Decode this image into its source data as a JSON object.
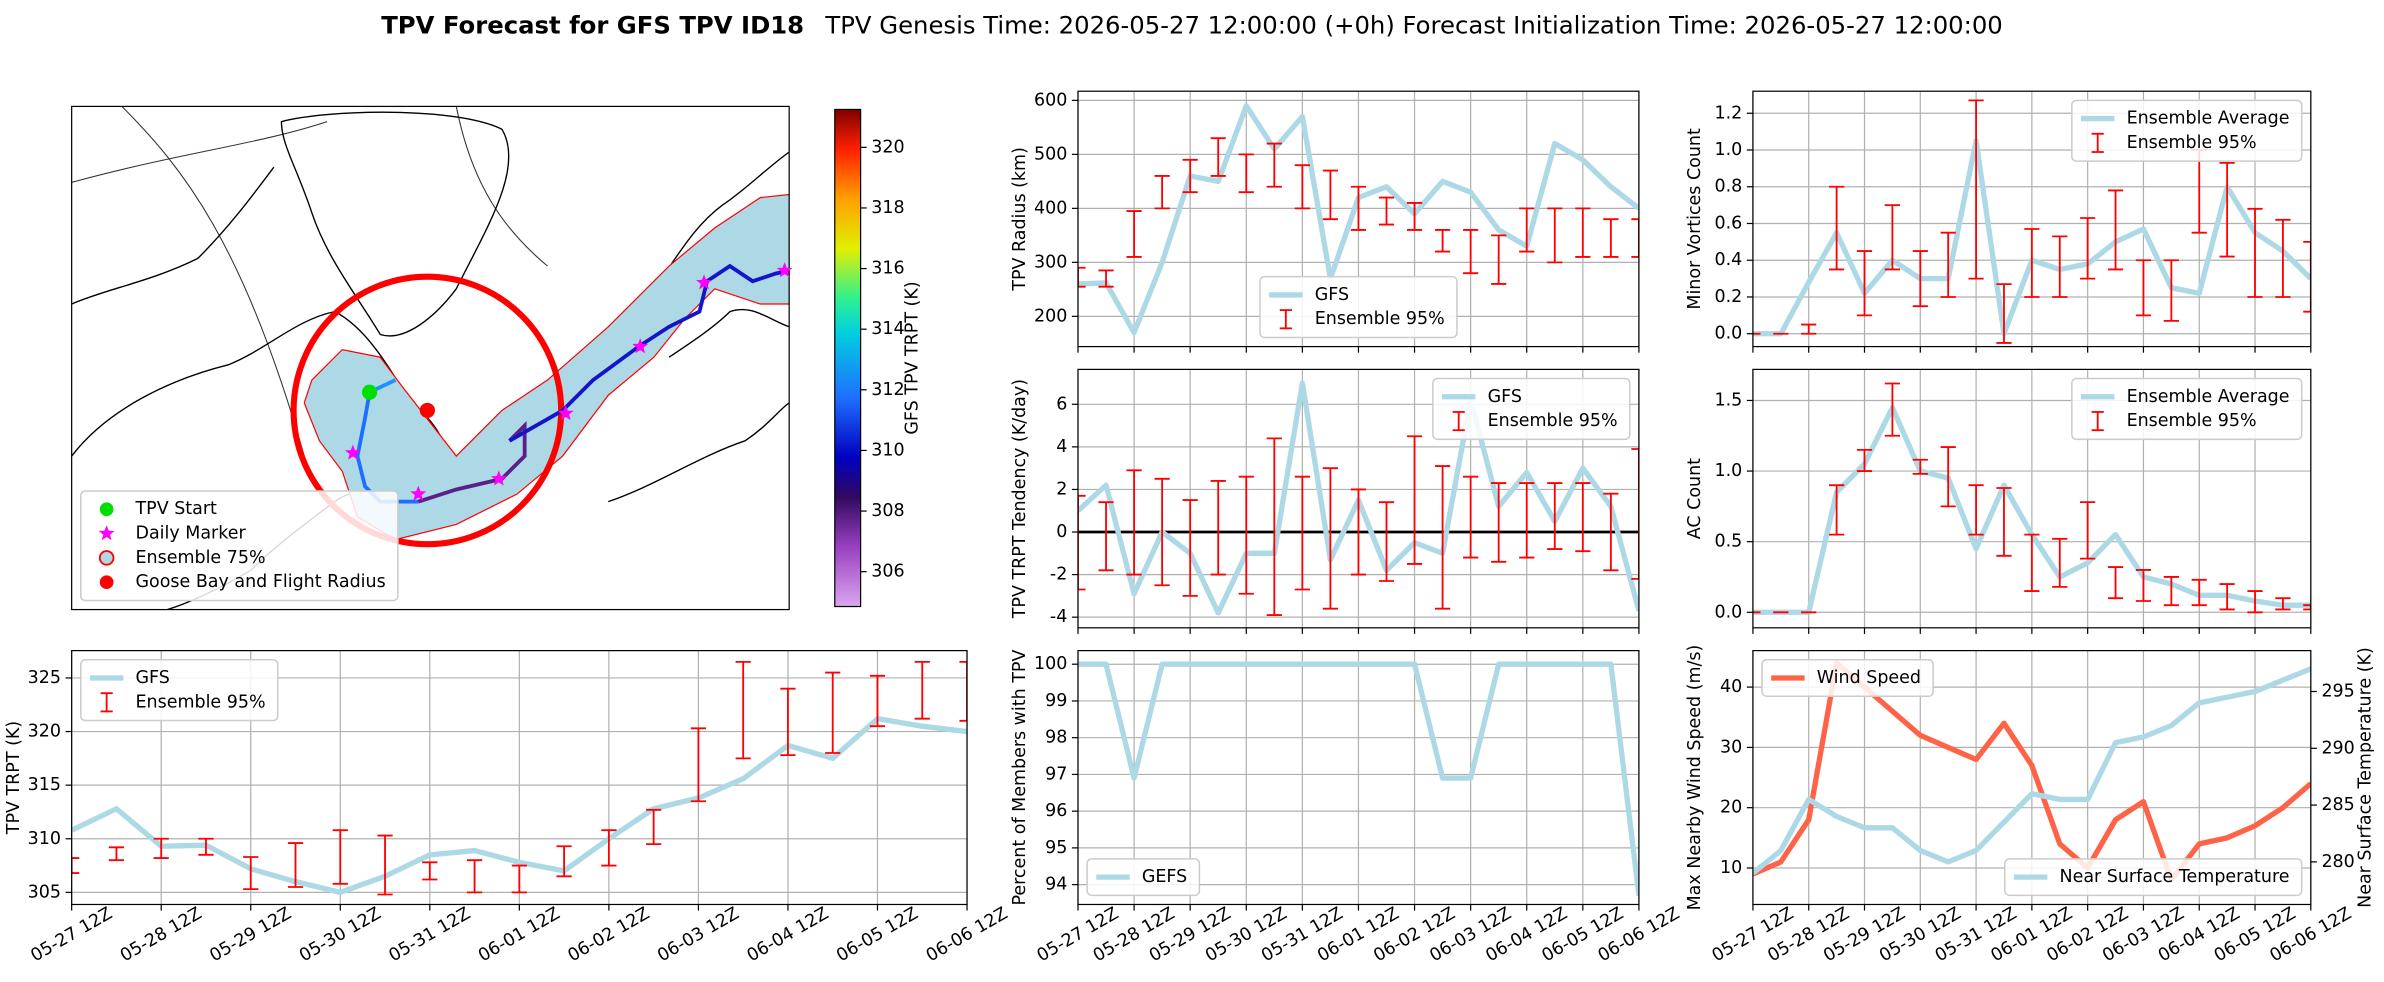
{
  "title": "TPV Forecast for GFS TPV ID18",
  "subtitle": "TPV Genesis Time: 2026-05-27 12:00:00 (+0h)   Forecast Initialization Time: 2026-05-27 12:00:00",
  "chart_data": [
    {
      "type": "map",
      "legend": "lower left",
      "legend_items": [
        {
          "name": "TPV Start",
          "color": "#00e000",
          "marker": "circle"
        },
        {
          "name": "Daily Marker",
          "color": "#ff00ff",
          "marker": "star"
        },
        {
          "name": "Ensemble 75%",
          "color": "#add8e6",
          "edge": "#ff0000",
          "marker": "circle"
        },
        {
          "name": "Goose Bay and Flight Radius",
          "color": "#ff0000",
          "marker": "circle"
        }
      ],
      "colorbar": {
        "label": "GFS TPV TRPT (K)",
        "lim": [
          304.85,
          321.25
        ],
        "ticks": [
          306,
          308,
          310,
          312,
          314,
          316,
          318,
          320
        ]
      }
    },
    {
      "type": "line",
      "ylabel": "TPV Radius (km)",
      "grid": true,
      "legend": "lower center",
      "xlim": [
        0,
        240
      ],
      "xticks": [
        0,
        24,
        48,
        72,
        96,
        120,
        144,
        168,
        192,
        216,
        240
      ],
      "ylim": [
        144,
        617
      ],
      "yticks": [
        200,
        300,
        400,
        500,
        600
      ],
      "x": [
        0,
        12,
        24,
        36,
        48,
        60,
        72,
        84,
        96,
        108,
        120,
        132,
        144,
        156,
        168,
        180,
        192,
        204,
        216,
        228,
        240
      ],
      "series": [
        {
          "name": "GFS",
          "color": "#add8e6",
          "values": [
            260,
            262,
            170,
            300,
            460,
            450,
            590,
            510,
            570,
            270,
            420,
            440,
            390,
            450,
            430,
            360,
            330,
            520,
            490,
            440,
            400
          ]
        },
        {
          "name": "Ensemble 95%",
          "color": "#ff0000",
          "style": "errorbar",
          "lower": [
            255,
            255,
            310,
            400,
            430,
            460,
            430,
            440,
            400,
            380,
            360,
            370,
            360,
            320,
            280,
            260,
            320,
            300,
            310,
            310,
            310
          ],
          "upper": [
            290,
            285,
            395,
            460,
            490,
            530,
            500,
            520,
            480,
            470,
            440,
            420,
            410,
            360,
            360,
            350,
            400,
            400,
            400,
            380,
            380
          ]
        }
      ]
    },
    {
      "type": "line",
      "ylabel": "Minor Vortices Count",
      "grid": true,
      "legend": "upper right",
      "xlim": [
        0,
        240
      ],
      "xticks": [
        0,
        24,
        48,
        72,
        96,
        120,
        144,
        168,
        192,
        216,
        240
      ],
      "ylim": [
        -0.07,
        1.32
      ],
      "yticks": [
        {
          "value": 0,
          "label": "0.0"
        },
        0.2,
        0.4,
        0.6,
        0.8,
        {
          "value": 1,
          "label": "1.0"
        },
        1.2
      ],
      "x": [
        0,
        12,
        24,
        36,
        48,
        60,
        72,
        84,
        96,
        108,
        120,
        132,
        144,
        156,
        168,
        180,
        192,
        204,
        216,
        228,
        240
      ],
      "series": [
        {
          "name": "Ensemble Average",
          "color": "#add8e6",
          "values": [
            0,
            0,
            0.28,
            0.55,
            0.22,
            0.4,
            0.3,
            0.3,
            1.05,
            0,
            0.4,
            0.35,
            0.38,
            0.5,
            0.57,
            0.25,
            0.22,
            0.8,
            0.55,
            0.45,
            0.3
          ]
        },
        {
          "name": "Ensemble 95%",
          "color": "#ff0000",
          "style": "errorbar",
          "lower": [
            0,
            0,
            0,
            0.35,
            0.1,
            0.35,
            0.15,
            0.2,
            0.3,
            -0.05,
            0.2,
            0.2,
            0.3,
            0.35,
            0.1,
            0.07,
            0.55,
            0.42,
            0.2,
            0.2,
            0.12
          ],
          "upper": [
            0,
            0,
            0.05,
            0.8,
            0.45,
            0.7,
            0.45,
            0.55,
            1.27,
            0.27,
            0.57,
            0.53,
            0.63,
            0.78,
            0.4,
            0.4,
            1.0,
            0.93,
            0.68,
            0.62,
            0.5
          ]
        }
      ]
    },
    {
      "type": "line",
      "ylabel": "TPV TRPT Tendency (K/day)",
      "grid": true,
      "legend": "upper right",
      "hline": 0,
      "xlim": [
        0,
        240
      ],
      "xticks": [
        0,
        24,
        48,
        72,
        96,
        120,
        144,
        168,
        192,
        216,
        240
      ],
      "ylim": [
        -4.5,
        7.64
      ],
      "yticks": [
        -4,
        -2,
        0,
        2,
        4,
        6
      ],
      "x": [
        0,
        12,
        24,
        36,
        48,
        60,
        72,
        84,
        96,
        108,
        120,
        132,
        144,
        156,
        168,
        180,
        192,
        204,
        216,
        228,
        240
      ],
      "series": [
        {
          "name": "GFS",
          "color": "#add8e6",
          "values": [
            1,
            2.2,
            -2.9,
            0,
            -1,
            -3.8,
            -1,
            -1,
            7,
            -1.3,
            1.5,
            -1.8,
            -0.5,
            -1,
            6.2,
            1.2,
            2.8,
            0.5,
            3,
            1.2,
            -3.7
          ]
        },
        {
          "name": "Ensemble 95%",
          "color": "#ff0000",
          "style": "errorbar",
          "lower": [
            -2.7,
            -1.8,
            -2,
            -2.5,
            -3,
            -2,
            -2.9,
            -3.9,
            -2.7,
            -3.6,
            -2,
            -2.3,
            -1.5,
            -3.6,
            -1.2,
            -1.4,
            -1.2,
            -0.8,
            -0.9,
            -1.8,
            -2.2
          ],
          "upper": [
            1.7,
            1.4,
            2.9,
            2.5,
            1.5,
            2.4,
            2.6,
            4.4,
            2.6,
            3,
            2,
            1.4,
            4.5,
            3.1,
            2.6,
            2.3,
            2.3,
            2.3,
            2.3,
            1.8,
            3.9
          ]
        }
      ]
    },
    {
      "type": "line",
      "ylabel": "AC Count",
      "grid": true,
      "legend": "upper right",
      "xlim": [
        0,
        240
      ],
      "xticks": [
        0,
        24,
        48,
        72,
        96,
        120,
        144,
        168,
        192,
        216,
        240
      ],
      "ylim": [
        -0.11,
        1.72
      ],
      "yticks": [
        {
          "value": 0,
          "label": "0.0"
        },
        0.5,
        {
          "value": 1,
          "label": "1.0"
        },
        1.5
      ],
      "x": [
        0,
        12,
        24,
        36,
        48,
        60,
        72,
        84,
        96,
        108,
        120,
        132,
        144,
        156,
        168,
        180,
        192,
        204,
        216,
        228,
        240
      ],
      "series": [
        {
          "name": "Ensemble Average",
          "color": "#add8e6",
          "values": [
            0,
            0,
            0,
            0.85,
            1.05,
            1.45,
            1,
            0.95,
            0.45,
            0.9,
            0.55,
            0.25,
            0.35,
            0.55,
            0.25,
            0.2,
            0.12,
            0.12,
            0.08,
            0.05,
            0.05
          ]
        },
        {
          "name": "Ensemble 95%",
          "color": "#ff0000",
          "style": "errorbar",
          "lower": [
            0,
            0,
            0,
            0.55,
            1,
            1.25,
            0.98,
            0.75,
            0.55,
            0.4,
            0.15,
            0.18,
            0.38,
            0.1,
            0.08,
            0.05,
            0.05,
            0.02,
            0,
            0.02,
            0.02
          ],
          "upper": [
            0,
            0,
            0,
            0.9,
            1.15,
            1.62,
            1.08,
            1.17,
            0.9,
            0.88,
            0.55,
            0.52,
            0.78,
            0.32,
            0.3,
            0.25,
            0.23,
            0.2,
            0.15,
            0.1,
            0.05
          ]
        }
      ]
    },
    {
      "type": "line",
      "ylabel": "TPV TRPT (K)",
      "grid": true,
      "legend": "upper left",
      "xlim": [
        0,
        240
      ],
      "xticks": [
        {
          "value": 0,
          "label": "05-27 12Z"
        },
        {
          "value": 24,
          "label": "05-28 12Z"
        },
        {
          "value": 48,
          "label": "05-29 12Z"
        },
        {
          "value": 72,
          "label": "05-30 12Z"
        },
        {
          "value": 96,
          "label": "05-31 12Z"
        },
        {
          "value": 120,
          "label": "06-01 12Z"
        },
        {
          "value": 144,
          "label": "06-02 12Z"
        },
        {
          "value": 168,
          "label": "06-03 12Z"
        },
        {
          "value": 192,
          "label": "06-04 12Z"
        },
        {
          "value": 216,
          "label": "06-05 12Z"
        },
        {
          "value": 240,
          "label": "06-06 12Z"
        }
      ],
      "ylim": [
        303.87,
        327.55
      ],
      "yticks": [
        305,
        310,
        315,
        320,
        325
      ],
      "x": [
        0,
        12,
        24,
        36,
        48,
        60,
        72,
        84,
        96,
        108,
        120,
        132,
        144,
        156,
        168,
        180,
        192,
        204,
        216,
        228,
        240
      ],
      "series": [
        {
          "name": "GFS",
          "color": "#add8e6",
          "values": [
            310.8,
            312.8,
            309.3,
            309.4,
            307.2,
            306,
            305,
            306.5,
            308.5,
            308.9,
            307.8,
            307,
            310,
            312.8,
            313.8,
            315.6,
            318.7,
            317.5,
            321.2,
            320.5,
            320
          ]
        },
        {
          "name": "Ensemble 95%",
          "color": "#ff0000",
          "style": "errorbar",
          "lower": [
            306.8,
            308,
            308.2,
            308.5,
            305.3,
            305.5,
            305.8,
            304.8,
            306.2,
            305,
            305,
            306.5,
            307.5,
            309.5,
            313.5,
            317.5,
            317.8,
            318,
            320.5,
            321.2,
            321
          ],
          "upper": [
            308.2,
            309.2,
            310,
            310,
            308.3,
            309.6,
            310.8,
            310.3,
            307.8,
            308,
            307.5,
            309.3,
            310.8,
            312.7,
            320.3,
            326.5,
            324,
            325.5,
            325.2,
            326.5,
            326.5
          ]
        }
      ]
    },
    {
      "type": "line",
      "ylabel": "Percent of Members with TPV",
      "grid": true,
      "legend": "lower left",
      "xlim": [
        0,
        240
      ],
      "xticks": [
        {
          "value": 0,
          "label": "05-27 12Z"
        },
        {
          "value": 24,
          "label": "05-28 12Z"
        },
        {
          "value": 48,
          "label": "05-29 12Z"
        },
        {
          "value": 72,
          "label": "05-30 12Z"
        },
        {
          "value": 96,
          "label": "05-31 12Z"
        },
        {
          "value": 120,
          "label": "06-01 12Z"
        },
        {
          "value": 144,
          "label": "06-02 12Z"
        },
        {
          "value": 168,
          "label": "06-03 12Z"
        },
        {
          "value": 192,
          "label": "06-04 12Z"
        },
        {
          "value": 216,
          "label": "06-05 12Z"
        },
        {
          "value": 240,
          "label": "06-06 12Z"
        }
      ],
      "ylim": [
        93.46,
        100.37
      ],
      "yticks": [
        94,
        95,
        96,
        97,
        98,
        99,
        100
      ],
      "x": [
        0,
        12,
        24,
        36,
        48,
        60,
        72,
        84,
        96,
        108,
        120,
        132,
        144,
        156,
        168,
        180,
        192,
        204,
        216,
        228,
        240
      ],
      "series": [
        {
          "name": "GEFS",
          "color": "#add8e6",
          "values": [
            100,
            100,
            96.9,
            100,
            100,
            100,
            100,
            100,
            100,
            100,
            100,
            100,
            100,
            96.9,
            96.9,
            100,
            100,
            100,
            100,
            100,
            93.7
          ]
        }
      ]
    },
    {
      "type": "line",
      "ylabel": "Max Nearby Wind Speed (m/s)",
      "ylabel_color": "#ff6347",
      "y2label": "Near Surface Temperature (K)",
      "y2label_color": "#4169e1",
      "grid": true,
      "legend": "upper left",
      "legend2": "lower right",
      "xlim": [
        0,
        240
      ],
      "xticks": [
        {
          "value": 0,
          "label": "05-27 12Z"
        },
        {
          "value": 24,
          "label": "05-28 12Z"
        },
        {
          "value": 48,
          "label": "05-29 12Z"
        },
        {
          "value": 72,
          "label": "05-30 12Z"
        },
        {
          "value": 96,
          "label": "05-31 12Z"
        },
        {
          "value": 120,
          "label": "06-01 12Z"
        },
        {
          "value": 144,
          "label": "06-02 12Z"
        },
        {
          "value": 168,
          "label": "06-03 12Z"
        },
        {
          "value": 192,
          "label": "06-04 12Z"
        },
        {
          "value": 216,
          "label": "06-05 12Z"
        },
        {
          "value": 240,
          "label": "06-06 12Z"
        }
      ],
      "ylim": [
        3.95,
        46.05
      ],
      "yticks": [
        10,
        20,
        30,
        40
      ],
      "y2lim": [
        276.25,
        298.6
      ],
      "y2ticks": [
        280,
        285,
        290,
        295
      ],
      "x": [
        0,
        12,
        24,
        36,
        48,
        60,
        72,
        84,
        96,
        108,
        120,
        132,
        144,
        156,
        168,
        180,
        192,
        204,
        216,
        228,
        240
      ],
      "series": [
        {
          "name": "Wind Speed",
          "color": "#ff6347",
          "values": [
            9,
            11,
            18,
            44,
            40,
            36,
            32,
            30,
            28,
            34,
            27,
            14,
            10,
            18,
            21,
            8,
            14,
            15,
            17,
            20,
            24
          ]
        },
        {
          "name": "Near Surface Temperature",
          "color": "#add8e6",
          "axis": "y2",
          "values": [
            279,
            281,
            285.5,
            284,
            283,
            283,
            281,
            280,
            281,
            283.5,
            286,
            285.5,
            285.5,
            290.5,
            291,
            292,
            294,
            294.5,
            295,
            296,
            297
          ]
        }
      ]
    }
  ]
}
